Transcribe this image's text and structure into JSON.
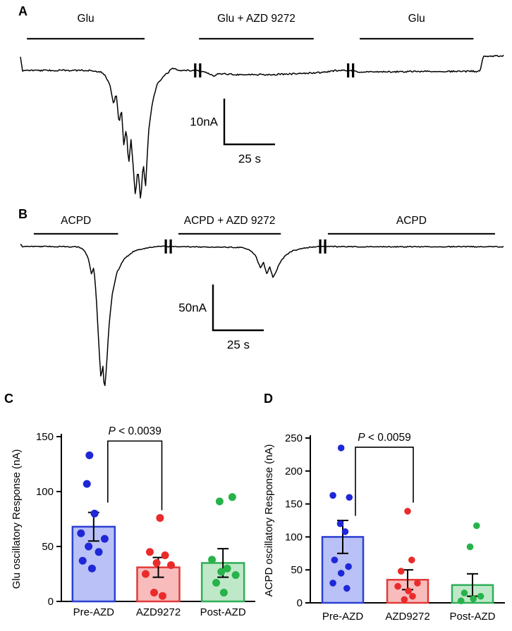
{
  "figure_labels": {
    "a": "A",
    "b": "B",
    "c": "C",
    "d": "D"
  },
  "chart_data": [
    {
      "type": "line",
      "panel": "A",
      "conditions": [
        {
          "label": "Glu",
          "x0": 0.019,
          "x1": 0.259
        },
        {
          "label": "Glu + AZD 9272",
          "x0": 0.37,
          "x1": 0.604
        },
        {
          "label": "Glu",
          "x0": 0.698,
          "x1": 0.93
        }
      ],
      "scalebar": {
        "current_label": "10nA",
        "time_label": "25 s",
        "current_nA": 10,
        "time_s": 25
      },
      "nA_per_div": 10,
      "breaks": [
        0.36,
        0.672
      ],
      "trace_nA": [
        [
          0.0,
          2.8
        ],
        [
          0.004,
          0
        ],
        [
          0.05,
          0
        ],
        [
          0.1,
          0
        ],
        [
          0.15,
          0
        ],
        [
          0.165,
          -0.3
        ],
        [
          0.175,
          -1
        ],
        [
          0.185,
          -3
        ],
        [
          0.193,
          -7.5
        ],
        [
          0.198,
          -5
        ],
        [
          0.204,
          -11.5
        ],
        [
          0.209,
          -8.5
        ],
        [
          0.214,
          -16.5
        ],
        [
          0.219,
          -12.5
        ],
        [
          0.224,
          -20.5
        ],
        [
          0.229,
          -15
        ],
        [
          0.238,
          -27.5
        ],
        [
          0.243,
          -21.5
        ],
        [
          0.249,
          -28.5
        ],
        [
          0.254,
          -20
        ],
        [
          0.259,
          -25.5
        ],
        [
          0.265,
          -13.5
        ],
        [
          0.273,
          -7
        ],
        [
          0.283,
          -3
        ],
        [
          0.3,
          -1
        ],
        [
          0.315,
          0.5
        ],
        [
          0.33,
          0
        ],
        [
          0.356,
          0
        ],
        [
          0.368,
          0
        ],
        [
          0.39,
          -0.6
        ],
        [
          0.4,
          -1.2
        ],
        [
          0.41,
          -0.7
        ],
        [
          0.45,
          -0.9
        ],
        [
          0.52,
          -0.9
        ],
        [
          0.58,
          -0.7
        ],
        [
          0.63,
          -0.4
        ],
        [
          0.655,
          0
        ],
        [
          0.676,
          0
        ],
        [
          0.7,
          -0.3
        ],
        [
          0.76,
          -0.3
        ],
        [
          0.85,
          -0.2
        ],
        [
          0.945,
          -0.2
        ],
        [
          0.952,
          0
        ],
        [
          0.958,
          3.2
        ],
        [
          0.97,
          3.0
        ],
        [
          0.99,
          3.2
        ]
      ]
    },
    {
      "type": "line",
      "panel": "B",
      "conditions": [
        {
          "label": "ACPD",
          "x0": 0.033,
          "x1": 0.205
        },
        {
          "label": "ACPD + AZD 9272",
          "x0": 0.328,
          "x1": 0.537
        },
        {
          "label": "ACPD",
          "x0": 0.633,
          "x1": 0.974
        }
      ],
      "scalebar": {
        "current_label": "50nA",
        "time_label": "25 s",
        "current_nA": 50,
        "time_s": 25
      },
      "nA_per_div": 50,
      "breaks": [
        0.3,
        0.615
      ],
      "trace_nA": [
        [
          0.0,
          2
        ],
        [
          0.004,
          0
        ],
        [
          0.06,
          0
        ],
        [
          0.12,
          -0.5
        ],
        [
          0.132,
          -4
        ],
        [
          0.14,
          -12
        ],
        [
          0.147,
          -30
        ],
        [
          0.152,
          -22
        ],
        [
          0.157,
          -55
        ],
        [
          0.162,
          -105
        ],
        [
          0.167,
          -148
        ],
        [
          0.17,
          -126
        ],
        [
          0.174,
          -158
        ],
        [
          0.178,
          -132
        ],
        [
          0.183,
          -88
        ],
        [
          0.19,
          -52
        ],
        [
          0.2,
          -28
        ],
        [
          0.215,
          -13
        ],
        [
          0.235,
          -5
        ],
        [
          0.26,
          -1.5
        ],
        [
          0.285,
          0
        ],
        [
          0.315,
          0
        ],
        [
          0.38,
          -0.5
        ],
        [
          0.46,
          -1
        ],
        [
          0.475,
          -4
        ],
        [
          0.487,
          -10
        ],
        [
          0.497,
          -24
        ],
        [
          0.503,
          -17
        ],
        [
          0.51,
          -30
        ],
        [
          0.516,
          -22
        ],
        [
          0.523,
          -34
        ],
        [
          0.53,
          -26
        ],
        [
          0.538,
          -17
        ],
        [
          0.548,
          -10
        ],
        [
          0.562,
          -5
        ],
        [
          0.585,
          -2
        ],
        [
          0.605,
          -0.5
        ],
        [
          0.63,
          0
        ],
        [
          0.7,
          -0.3
        ],
        [
          0.8,
          -0.3
        ],
        [
          0.9,
          -0.2
        ],
        [
          0.99,
          -0.3
        ]
      ]
    },
    {
      "type": "bar",
      "panel": "C",
      "ylabel": "Glu oscillatory Response (nA)",
      "ylim": [
        0,
        150
      ],
      "yticks": [
        0,
        50,
        100,
        150
      ],
      "categories": [
        "Pre-AZD",
        "AZD9272",
        "Post-AZD"
      ],
      "p_label": "P < 0.0039",
      "bracket": {
        "from": 0,
        "to": 1,
        "top": 146,
        "left_bottom": 90,
        "right_bottom": 83
      },
      "series": [
        {
          "name": "Pre-AZD",
          "mean": 68,
          "sem": 13,
          "fill": "#b9c1f6",
          "stroke": "#2b3fd4",
          "dot": "#1f27d8",
          "dots": [
            [
              133,
              -0.1
            ],
            [
              107,
              -0.16
            ],
            [
              80,
              0.02
            ],
            [
              62,
              -0.3
            ],
            [
              57,
              0.26
            ],
            [
              50,
              -0.12
            ],
            [
              45,
              0.12
            ],
            [
              37,
              -0.26
            ],
            [
              30,
              -0.04
            ]
          ]
        },
        {
          "name": "AZD9272",
          "mean": 31,
          "sem": 9,
          "fill": "#f8bcbc",
          "stroke": "#e03a3a",
          "dot": "#ea2b2b",
          "dots": [
            [
              76,
              0.04
            ],
            [
              45,
              -0.2
            ],
            [
              42,
              0.16
            ],
            [
              35,
              -0.04
            ],
            [
              33,
              0.3
            ],
            [
              25,
              -0.3
            ],
            [
              8,
              -0.1
            ],
            [
              5,
              0.1
            ]
          ]
        },
        {
          "name": "Post-AZD",
          "mean": 35,
          "sem": 13,
          "fill": "#bfe8c8",
          "stroke": "#2fae57",
          "dot": "#27b34a",
          "dots": [
            [
              95,
              0.22
            ],
            [
              91,
              -0.08
            ],
            [
              38,
              -0.26
            ],
            [
              30,
              0.1
            ],
            [
              27,
              -0.04
            ],
            [
              24,
              0.3
            ],
            [
              17,
              -0.16
            ],
            [
              8,
              0.02
            ]
          ]
        }
      ]
    },
    {
      "type": "bar",
      "panel": "D",
      "ylabel": "ACPD oscillatory Response (nA)",
      "ylim": [
        0,
        250
      ],
      "yticks": [
        0,
        50,
        100,
        150,
        200,
        250
      ],
      "categories": [
        "Pre-AZD",
        "AZD9272",
        "Post-AZD"
      ],
      "p_label": "P < 0.0059",
      "bracket": {
        "from": 0,
        "to": 1,
        "top": 236,
        "left_bottom": 132,
        "right_bottom": 152
      },
      "series": [
        {
          "name": "Pre-AZD",
          "mean": 100,
          "sem": 25,
          "fill": "#b9c1f6",
          "stroke": "#2b3fd4",
          "dot": "#1f27d8",
          "dots": [
            [
              235,
              -0.04
            ],
            [
              163,
              -0.24
            ],
            [
              160,
              0.16
            ],
            [
              120,
              -0.06
            ],
            [
              108,
              0.06
            ],
            [
              65,
              -0.2
            ],
            [
              55,
              0.14
            ],
            [
              45,
              -0.04
            ],
            [
              30,
              -0.24
            ],
            [
              22,
              0.1
            ]
          ]
        },
        {
          "name": "AZD9272",
          "mean": 35,
          "sem": 15,
          "fill": "#f8bcbc",
          "stroke": "#e03a3a",
          "dot": "#ea2b2b",
          "dots": [
            [
              139,
              0.0
            ],
            [
              65,
              0.1
            ],
            [
              48,
              -0.16
            ],
            [
              30,
              0.24
            ],
            [
              25,
              -0.24
            ],
            [
              18,
              0.02
            ],
            [
              10,
              0.12
            ],
            [
              5,
              -0.08
            ]
          ]
        },
        {
          "name": "Post-AZD",
          "mean": 27,
          "sem": 17,
          "fill": "#bfe8c8",
          "stroke": "#2fae57",
          "dot": "#27b34a",
          "dots": [
            [
              117,
              0.1
            ],
            [
              85,
              -0.06
            ],
            [
              15,
              -0.2
            ],
            [
              10,
              0.2
            ],
            [
              6,
              0.02
            ],
            [
              3,
              -0.28
            ]
          ]
        }
      ]
    }
  ]
}
